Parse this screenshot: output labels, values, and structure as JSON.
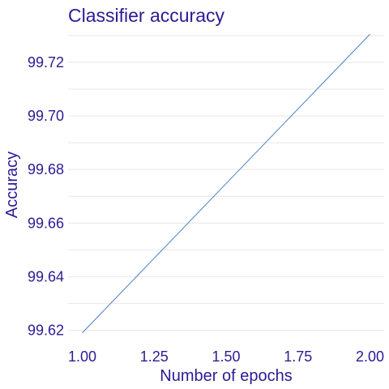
{
  "chart_data": {
    "type": "line",
    "title": "Classifier accuracy",
    "xlabel": "Number of epochs",
    "ylabel": "Accuracy",
    "x": [
      1,
      2
    ],
    "series": [
      {
        "values": [
          99.619,
          99.7305
        ]
      }
    ],
    "xlim": [
      1,
      2
    ],
    "ylim": [
      99.6153,
      99.7342
    ],
    "x_ticks": [
      1.0,
      1.25,
      1.5,
      1.75,
      2.0
    ],
    "x_tick_labels": [
      "1.00",
      "1.25",
      "1.50",
      "1.75",
      "2.00"
    ],
    "y_ticks": [
      99.62,
      99.64,
      99.66,
      99.68,
      99.7,
      99.72
    ],
    "y_tick_labels": [
      "99.62",
      "99.64",
      "99.66",
      "99.68",
      "99.70",
      "99.72"
    ],
    "y_minor_ticks": [
      99.63,
      99.65,
      99.67,
      99.69,
      99.71,
      99.73
    ],
    "grid": true,
    "legend": "none"
  },
  "colors": {
    "text": "#2e1a94",
    "line": "#4a7fc6",
    "grid": "#e8e8e8",
    "background": "#ffffff"
  }
}
